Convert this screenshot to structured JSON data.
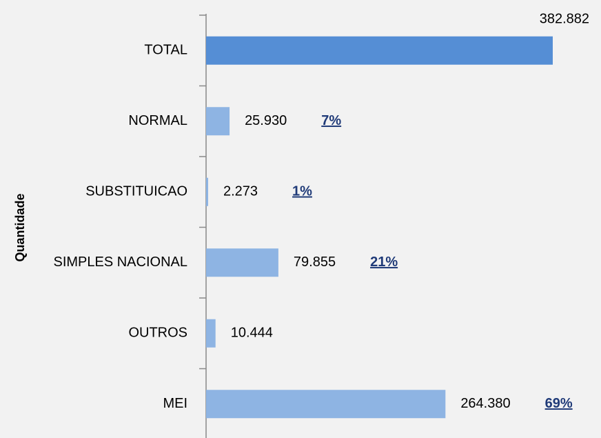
{
  "chart_data": {
    "type": "bar",
    "orientation": "horizontal",
    "y_axis_label": "Quantidade",
    "categories": [
      "TOTAL",
      "NORMAL",
      "SUBSTITUICAO",
      "SIMPLES NACIONAL",
      "OUTROS",
      "MEI"
    ],
    "values": [
      382882,
      25930,
      2273,
      79855,
      10444,
      264380
    ],
    "value_labels": [
      "382.882",
      "25.930",
      "2.273",
      "79.855",
      "10.444",
      "264.380"
    ],
    "percent_labels": [
      null,
      "7%",
      "1%",
      "21%",
      null,
      "69%"
    ],
    "colors": [
      "#558ed5",
      "#8eb4e3",
      "#8eb4e3",
      "#8eb4e3",
      "#8eb4e3",
      "#8eb4e3"
    ]
  }
}
